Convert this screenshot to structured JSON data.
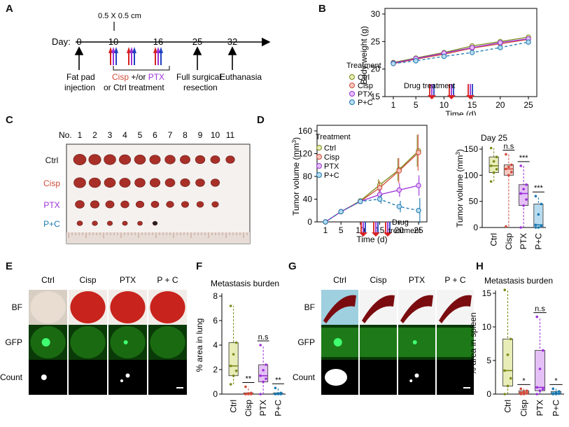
{
  "panels": {
    "A": "A",
    "B": "B",
    "C": "C",
    "D": "D",
    "E": "E",
    "F": "F",
    "G": "G",
    "H": "H"
  },
  "timeline": {
    "day_label": "Day:",
    "size_label": "0.5 X 0.5 cm",
    "days": [
      "0",
      "10",
      "16",
      "25",
      "32"
    ],
    "fat_pad_1": "Fat pad",
    "fat_pad_2": "injection",
    "cisp": "Cisp",
    "andor": " +/or ",
    "ptx": "PTX",
    "ctrl_treatment": "or Ctrl treatment",
    "full_1": "Full surgical",
    "full_2": "resection",
    "euthanasia": "Euthanasia"
  },
  "colors": {
    "ctrl": "#7a8a18",
    "cisp": "#d04a3a",
    "ptx": "#9b30d8",
    "pc": "#1a78b0",
    "arrow_red": "#d82020",
    "arrow_blue": "#2040c0"
  },
  "legend": {
    "title": "Treatment",
    "items": [
      "Ctrl",
      "Cisp",
      "PTX",
      "P+C"
    ]
  },
  "drug_treatment": "Drug treatment",
  "drug_label_1": "Drug",
  "drug_label_2": "treatment",
  "chart_data": [
    {
      "id": "B",
      "type": "line",
      "ylabel": "Body weight (g)",
      "xlabel": "Time (d)",
      "x": [
        1,
        5,
        10,
        15,
        20,
        25
      ],
      "xticks": [
        "1",
        "5",
        "10",
        "15",
        "20",
        "25"
      ],
      "ylim": [
        15,
        30
      ],
      "yticks": [
        "15",
        "20",
        "25",
        "30"
      ],
      "series": [
        {
          "name": "Ctrl",
          "values": [
            21.2,
            22.0,
            23.0,
            24.2,
            25.0,
            25.8
          ]
        },
        {
          "name": "Cisp",
          "values": [
            21.0,
            21.8,
            22.7,
            23.8,
            24.6,
            25.4
          ]
        },
        {
          "name": "PTX",
          "values": [
            21.1,
            21.9,
            22.9,
            23.9,
            24.8,
            25.5
          ]
        },
        {
          "name": "P+C",
          "values": [
            21.0,
            21.5,
            22.3,
            23.0,
            23.9,
            24.9
          ]
        }
      ]
    },
    {
      "id": "D",
      "type": "line",
      "ylabel": "Tumor volume (mm",
      "ylabel_sup": "3",
      "ylabel_end": ")",
      "xlabel": "Time (d)",
      "x": [
        1,
        5,
        10,
        15,
        20,
        25
      ],
      "xticks": [
        "1",
        "5",
        "10",
        "15",
        "20",
        "25"
      ],
      "ylim": [
        0,
        160
      ],
      "yticks": [
        "0",
        "40",
        "80",
        "120",
        "160"
      ],
      "series": [
        {
          "name": "Ctrl",
          "values": [
            0,
            18,
            37,
            65,
            92,
            125
          ]
        },
        {
          "name": "Cisp",
          "values": [
            0,
            18,
            36,
            60,
            90,
            122
          ]
        },
        {
          "name": "PTX",
          "values": [
            0,
            18,
            36,
            48,
            56,
            64
          ]
        },
        {
          "name": "P+C",
          "values": [
            0,
            18,
            36,
            40,
            27,
            20
          ]
        }
      ]
    },
    {
      "id": "D2",
      "type": "box",
      "title": "Day 25",
      "ylabel": "Tumor volume (mm",
      "ylabel_sup": "3",
      "ylabel_end": ")",
      "categories": [
        "Ctrl",
        "Cisp",
        "PTX",
        "P+C"
      ],
      "ylim": [
        0,
        150
      ],
      "yticks": [
        "0",
        "50",
        "100",
        "150"
      ],
      "boxes": [
        {
          "q1": 105,
          "median": 118,
          "q3": 135,
          "lo": 88,
          "hi": 152
        },
        {
          "q1": 100,
          "median": 112,
          "q3": 120,
          "lo": 2,
          "hi": 140
        },
        {
          "q1": 42,
          "median": 65,
          "q3": 82,
          "lo": 0,
          "hi": 118
        },
        {
          "q1": 0,
          "median": 5,
          "q3": 45,
          "lo": 0,
          "hi": 60
        }
      ],
      "sig": [
        {
          "text": "n.s",
          "index": 1
        },
        {
          "text": "***",
          "index": 2
        },
        {
          "text": "***",
          "index": 3
        }
      ]
    },
    {
      "id": "F",
      "type": "box",
      "title": "Metastasis burden",
      "ylabel": "% area in lung",
      "categories": [
        "Ctrl",
        "Cisp",
        "PTX",
        "P+C"
      ],
      "ylim": [
        0,
        8
      ],
      "yticks": [
        "0",
        "2",
        "4",
        "6",
        "8"
      ],
      "boxes": [
        {
          "q1": 1.5,
          "median": 2.3,
          "q3": 4.2,
          "lo": 0.8,
          "hi": 7.2
        },
        {
          "q1": 0,
          "median": 0,
          "q3": 0.1,
          "lo": 0,
          "hi": 0.6
        },
        {
          "q1": 1.0,
          "median": 1.5,
          "q3": 2.4,
          "lo": 0,
          "hi": 4.0
        },
        {
          "q1": 0,
          "median": 0,
          "q3": 0.1,
          "lo": 0,
          "hi": 0.5
        }
      ],
      "sig": [
        {
          "text": "**",
          "index": 1
        },
        {
          "text": "n.s",
          "index": 2
        },
        {
          "text": "**",
          "index": 3
        }
      ]
    },
    {
      "id": "H",
      "type": "box",
      "title": "Metastasis burden",
      "ylabel": "% area in spleen",
      "categories": [
        "Ctrl",
        "Cisp",
        "PTX",
        "P+C"
      ],
      "ylim": [
        0,
        15
      ],
      "yticks": [
        "0",
        "5",
        "10",
        "15"
      ],
      "boxes": [
        {
          "q1": 1.2,
          "median": 3.5,
          "q3": 8.2,
          "lo": 0,
          "hi": 15.5
        },
        {
          "q1": 0,
          "median": 0.2,
          "q3": 0.5,
          "lo": 0,
          "hi": 0.8
        },
        {
          "q1": 0.5,
          "median": 1.0,
          "q3": 6.5,
          "lo": 0,
          "hi": 11.5
        },
        {
          "q1": 0,
          "median": 0.1,
          "q3": 0.4,
          "lo": 0,
          "hi": 0.8
        }
      ],
      "sig": [
        {
          "text": "*",
          "index": 1
        },
        {
          "text": "n.s",
          "index": 2
        },
        {
          "text": "*",
          "index": 3
        }
      ]
    }
  ],
  "panelC": {
    "no": "No.",
    "numbers": [
      "1",
      "2",
      "3",
      "4",
      "5",
      "6",
      "7",
      "8",
      "9",
      "10",
      "11"
    ],
    "rows": [
      "Ctrl",
      "Cisp",
      "PTX",
      "P+C"
    ],
    "counts": [
      11,
      10,
      10,
      6
    ]
  },
  "panelE": {
    "cols": [
      "Ctrl",
      "Cisp",
      "PTX",
      "P + C"
    ],
    "rows": [
      "BF",
      "GFP",
      "Count"
    ]
  },
  "panelG": {
    "cols": [
      "Ctrl",
      "Cisp",
      "PTX",
      "P + C"
    ],
    "rows": [
      "BF",
      "GFP",
      "Count"
    ]
  }
}
